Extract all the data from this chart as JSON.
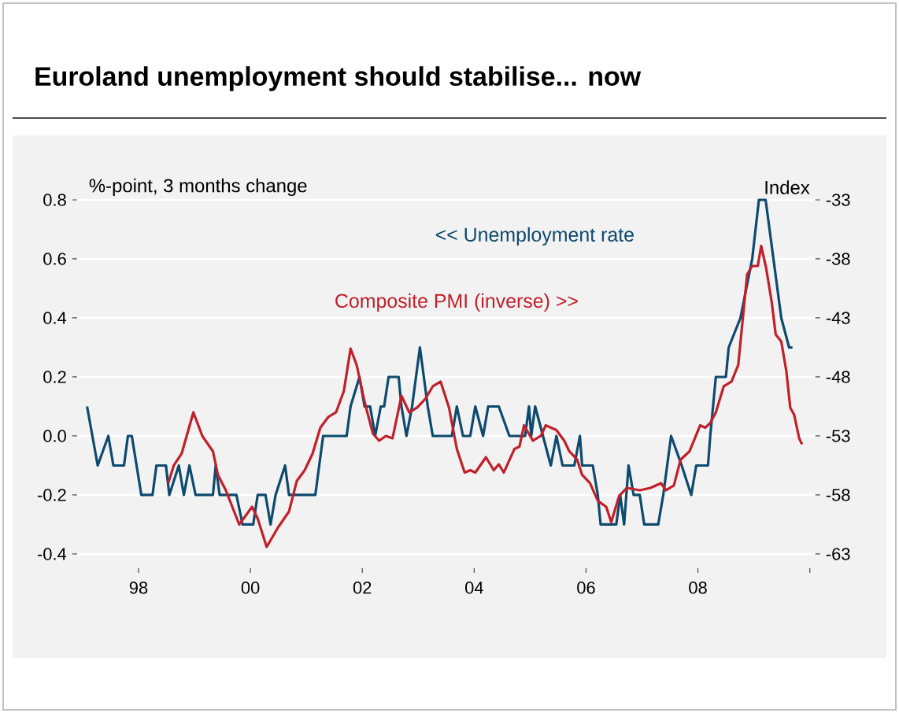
{
  "chart_data": {
    "type": "line",
    "title": "Euroland unemployment should stabilise... now",
    "ylabel": "%-point, 3 months change",
    "y2label": "Index",
    "xlim": [
      1996.9,
      2010.1
    ],
    "xticks": [
      {
        "value": 1998,
        "label": "98"
      },
      {
        "value": 2000,
        "label": "00"
      },
      {
        "value": 2002,
        "label": "02"
      },
      {
        "value": 2004,
        "label": "04"
      },
      {
        "value": 2006,
        "label": "06"
      },
      {
        "value": 2008,
        "label": "08"
      },
      {
        "value": 2010,
        "label": null
      }
    ],
    "ylim": [
      -0.4,
      0.8
    ],
    "yticks": [
      {
        "value": -0.4,
        "label": "-0.4"
      },
      {
        "value": -0.2,
        "label": "-0.2"
      },
      {
        "value": 0,
        "label": "0.0"
      },
      {
        "value": 0.2,
        "label": "0.2"
      },
      {
        "value": 0.4,
        "label": "0.4"
      },
      {
        "value": 0.6,
        "label": "0.6"
      },
      {
        "value": 0.8,
        "label": "0.8"
      }
    ],
    "y2lim": [
      -63,
      -33
    ],
    "y2ticks": [
      -63,
      -58,
      -53,
      -48,
      -43,
      -38,
      -33
    ],
    "grid": "y",
    "series": [
      {
        "name": "<< Unemployment rate",
        "color": "#0d4a6e",
        "x": [
          1997.08,
          1997.27,
          1997.46,
          1997.55,
          1997.74,
          1997.81,
          1997.88,
          1998.05,
          1998.25,
          1998.32,
          1998.49,
          1998.55,
          1998.72,
          1998.81,
          1998.91,
          1999.02,
          1999.33,
          1999.38,
          1999.45,
          1999.75,
          1999.86,
          2000.05,
          2000.13,
          2000.27,
          2000.36,
          2000.45,
          2000.62,
          2000.69,
          2001.16,
          2001.3,
          2001.72,
          2001.79,
          2001.95,
          2002.04,
          2002.14,
          2002.23,
          2002.33,
          2002.39,
          2002.47,
          2002.65,
          2002.7,
          2002.79,
          2002.89,
          2003.03,
          2003.17,
          2003.26,
          2003.6,
          2003.69,
          2003.8,
          2003.93,
          2004.02,
          2004.16,
          2004.25,
          2004.44,
          2004.63,
          2004.91,
          2004.98,
          2005.02,
          2005.09,
          2005.23,
          2005.37,
          2005.47,
          2005.58,
          2005.79,
          2005.89,
          2005.93,
          2006.12,
          2006.21,
          2006.26,
          2006.54,
          2006.61,
          2006.68,
          2006.76,
          2006.85,
          2006.96,
          2007.04,
          2007.29,
          2007.38,
          2007.52,
          2007.71,
          2007.88,
          2007.97,
          2008.18,
          2008.22,
          2008.32,
          2008.5,
          2008.55,
          2008.76,
          2008.97,
          2009.09,
          2009.21,
          2009.35,
          2009.49,
          2009.63,
          2009.69
        ],
        "values": [
          0.1,
          -0.1,
          0,
          -0.1,
          -0.1,
          0,
          0,
          -0.2,
          -0.2,
          -0.1,
          -0.1,
          -0.2,
          -0.1,
          -0.2,
          -0.1,
          -0.2,
          -0.2,
          -0.1,
          -0.2,
          -0.2,
          -0.3,
          -0.3,
          -0.2,
          -0.2,
          -0.3,
          -0.2,
          -0.1,
          -0.2,
          -0.2,
          0,
          0,
          0.1,
          0.2,
          0.1,
          0.1,
          0,
          0.1,
          0.1,
          0.2,
          0.2,
          0.1,
          0,
          0.1,
          0.3,
          0.1,
          0,
          0,
          0.1,
          0,
          0,
          0.1,
          0,
          0.1,
          0.1,
          0,
          0,
          0.1,
          0,
          0.1,
          0,
          -0.1,
          0,
          -0.1,
          -0.1,
          0,
          -0.1,
          -0.1,
          -0.2,
          -0.3,
          -0.3,
          -0.2,
          -0.3,
          -0.1,
          -0.2,
          -0.2,
          -0.3,
          -0.3,
          -0.2,
          0,
          -0.1,
          -0.2,
          -0.1,
          -0.1,
          0,
          0.2,
          0.2,
          0.3,
          0.4,
          0.6,
          0.8,
          0.8,
          0.6,
          0.4,
          0.3,
          0.3
        ]
      },
      {
        "name": "Composite PMI (inverse)  >>",
        "color": "#c0202a",
        "axis": "y2",
        "x": [
          1998.53,
          1998.63,
          1998.77,
          1998.98,
          1999.14,
          1999.33,
          1999.42,
          1999.56,
          1999.8,
          2000.03,
          2000.13,
          2000.29,
          2000.5,
          2000.69,
          2000.83,
          2000.97,
          2001.11,
          2001.25,
          2001.39,
          2001.53,
          2001.67,
          2001.79,
          2001.9,
          2002.04,
          2002.19,
          2002.3,
          2002.42,
          2002.54,
          2002.7,
          2002.84,
          2002.98,
          2003.12,
          2003.26,
          2003.4,
          2003.55,
          2003.69,
          2003.83,
          2003.93,
          2004.02,
          2004.21,
          2004.35,
          2004.44,
          2004.53,
          2004.72,
          2004.81,
          2004.89,
          2005.05,
          2005.19,
          2005.28,
          2005.47,
          2005.61,
          2005.7,
          2005.84,
          2005.93,
          2006.07,
          2006.21,
          2006.36,
          2006.45,
          2006.59,
          2006.73,
          2006.96,
          2007.15,
          2007.34,
          2007.43,
          2007.57,
          2007.69,
          2007.85,
          2008.04,
          2008.13,
          2008.22,
          2008.32,
          2008.46,
          2008.6,
          2008.72,
          2008.88,
          2008.97,
          2009.07,
          2009.13,
          2009.22,
          2009.32,
          2009.39,
          2009.49,
          2009.58,
          2009.65,
          2009.72,
          2009.81,
          2009.86
        ],
        "values": [
          -57,
          -55.5,
          -54.5,
          -51,
          -53,
          -54.3,
          -56.3,
          -57.6,
          -60.5,
          -59,
          -60,
          -62.4,
          -60.7,
          -59.4,
          -56.8,
          -55.9,
          -54.5,
          -52.3,
          -51.4,
          -51,
          -49.2,
          -45.6,
          -47,
          -50.1,
          -52.8,
          -53.4,
          -53,
          -53.2,
          -49.6,
          -51,
          -50.6,
          -49.9,
          -48.8,
          -48.4,
          -50.6,
          -54.1,
          -56.1,
          -55.9,
          -56.1,
          -54.8,
          -55.9,
          -55.4,
          -56.1,
          -54.1,
          -53.9,
          -52.1,
          -53.4,
          -53,
          -52.1,
          -52.5,
          -53.4,
          -54.3,
          -55,
          -56.3,
          -57,
          -58.5,
          -59,
          -60.3,
          -58.1,
          -57.4,
          -57.6,
          -57.4,
          -57,
          -57.6,
          -57.2,
          -55,
          -54.3,
          -52.1,
          -52.3,
          -51.9,
          -51,
          -48.8,
          -48.4,
          -47,
          -39.3,
          -38.6,
          -38.6,
          -36.9,
          -38.8,
          -41.7,
          -44.4,
          -45,
          -47.5,
          -50.6,
          -51.2,
          -53.2,
          -53.7
        ]
      }
    ]
  }
}
